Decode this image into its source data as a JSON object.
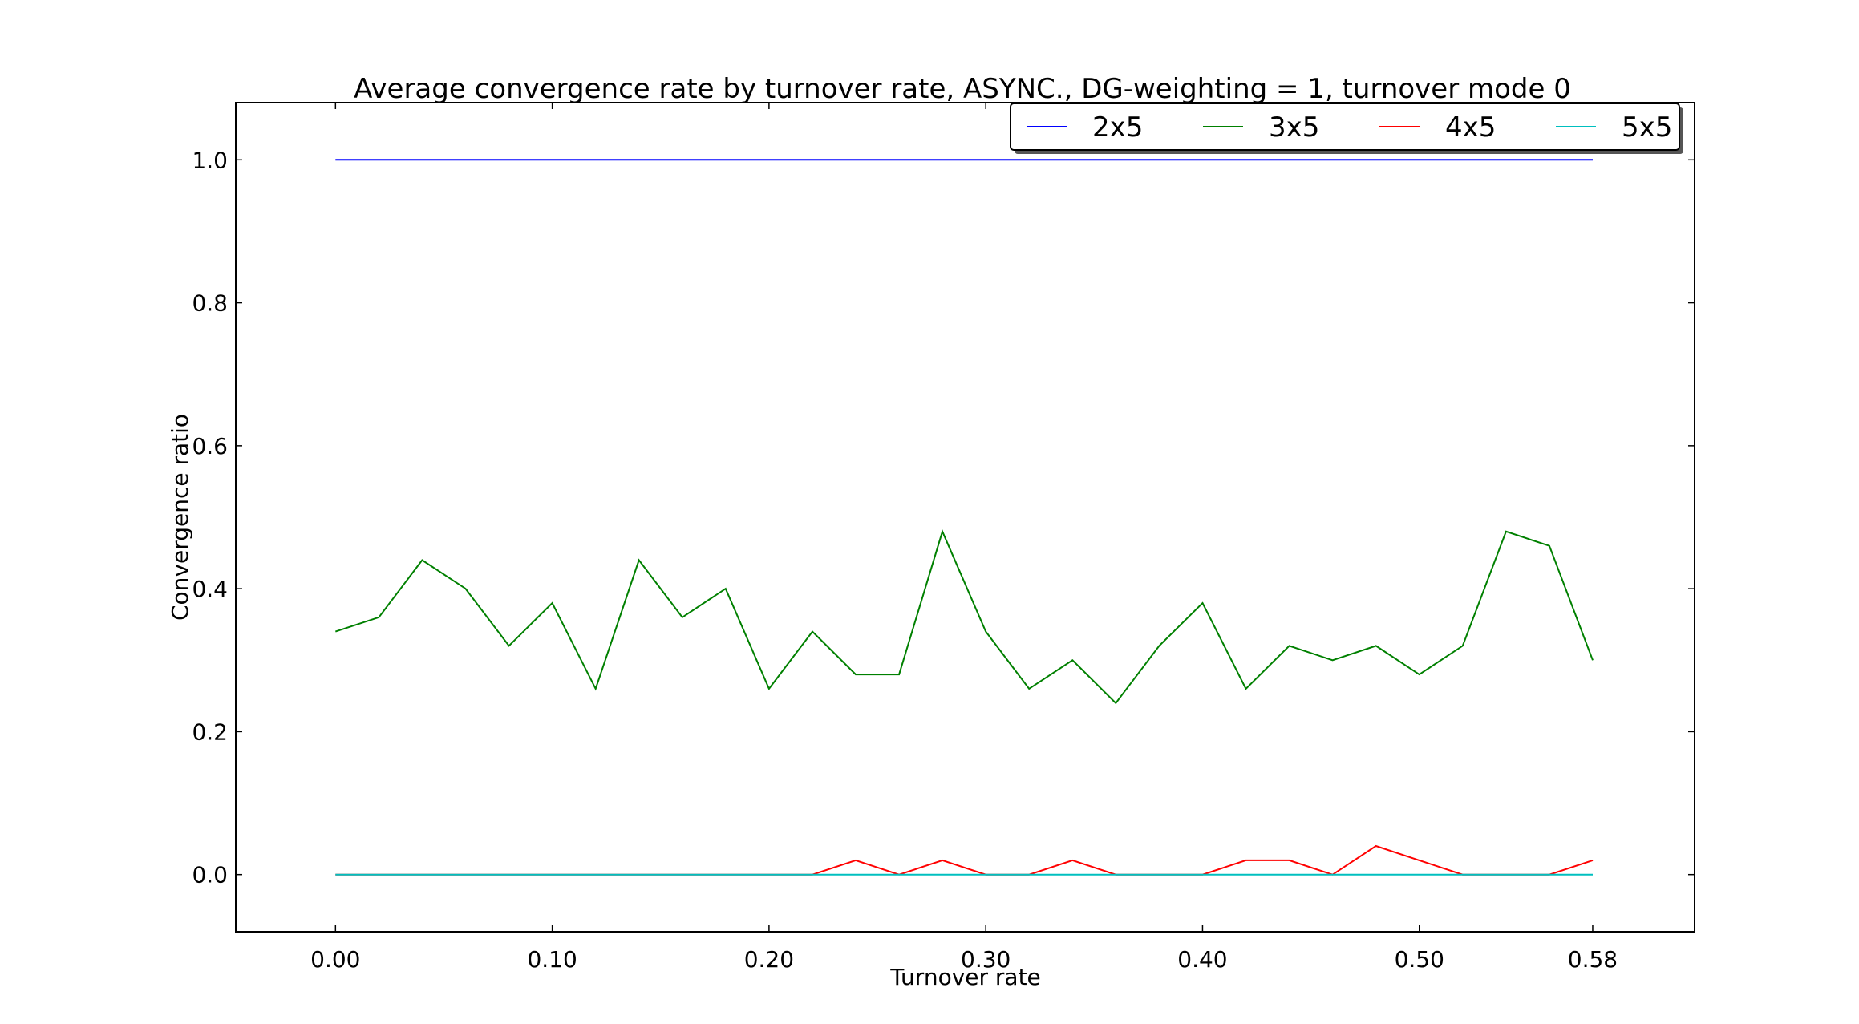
{
  "chart_data": {
    "type": "line",
    "title": "Average convergence rate by turnover rate, ASYNC., DG-weighting = 1, turnover mode 0",
    "xlabel": "Turnover rate",
    "ylabel": "Convergence ratio",
    "xlim": [
      -0.046,
      0.627
    ],
    "ylim": [
      -0.08,
      1.08
    ],
    "x_ticks": [
      0.0,
      0.1,
      0.2,
      0.3,
      0.4,
      0.5,
      0.58
    ],
    "x_tick_labels": [
      "0.00",
      "0.10",
      "0.20",
      "0.30",
      "0.40",
      "0.50",
      "0.58"
    ],
    "y_ticks": [
      0.0,
      0.2,
      0.4,
      0.6,
      0.8,
      1.0
    ],
    "y_tick_labels": [
      "0.0",
      "0.2",
      "0.4",
      "0.6",
      "0.8",
      "1.0"
    ],
    "grid": false,
    "legend_position": "top-right",
    "x": [
      0.0,
      0.02,
      0.04,
      0.06,
      0.08,
      0.1,
      0.12,
      0.14,
      0.16,
      0.18,
      0.2,
      0.22,
      0.24,
      0.26,
      0.28,
      0.3,
      0.32,
      0.34,
      0.36,
      0.38,
      0.4,
      0.42,
      0.44,
      0.46,
      0.48,
      0.5,
      0.52,
      0.54,
      0.56,
      0.58
    ],
    "series": [
      {
        "name": "2x5",
        "color": "#0000ff",
        "values": [
          1,
          1,
          1,
          1,
          1,
          1,
          1,
          1,
          1,
          1,
          1,
          1,
          1,
          1,
          1,
          1,
          1,
          1,
          1,
          1,
          1,
          1,
          1,
          1,
          1,
          1,
          1,
          1,
          1,
          1
        ]
      },
      {
        "name": "3x5",
        "color": "#008000",
        "values": [
          0.34,
          0.36,
          0.44,
          0.4,
          0.32,
          0.38,
          0.26,
          0.44,
          0.36,
          0.4,
          0.26,
          0.34,
          0.28,
          0.28,
          0.48,
          0.34,
          0.26,
          0.3,
          0.24,
          0.32,
          0.38,
          0.26,
          0.32,
          0.3,
          0.32,
          0.28,
          0.32,
          0.48,
          0.46,
          0.3
        ]
      },
      {
        "name": "4x5",
        "color": "#ff0000",
        "values": [
          0,
          0,
          0,
          0,
          0,
          0,
          0,
          0,
          0,
          0,
          0,
          0,
          0.02,
          0,
          0.02,
          0,
          0,
          0.02,
          0,
          0,
          0,
          0.02,
          0.02,
          0,
          0.04,
          0.02,
          0,
          0,
          0,
          0.02
        ]
      },
      {
        "name": "5x5",
        "color": "#00bfbf",
        "values": [
          0,
          0,
          0,
          0,
          0,
          0,
          0,
          0,
          0,
          0,
          0,
          0,
          0,
          0,
          0,
          0,
          0,
          0,
          0,
          0,
          0,
          0,
          0,
          0,
          0,
          0,
          0,
          0,
          0,
          0
        ]
      }
    ]
  }
}
